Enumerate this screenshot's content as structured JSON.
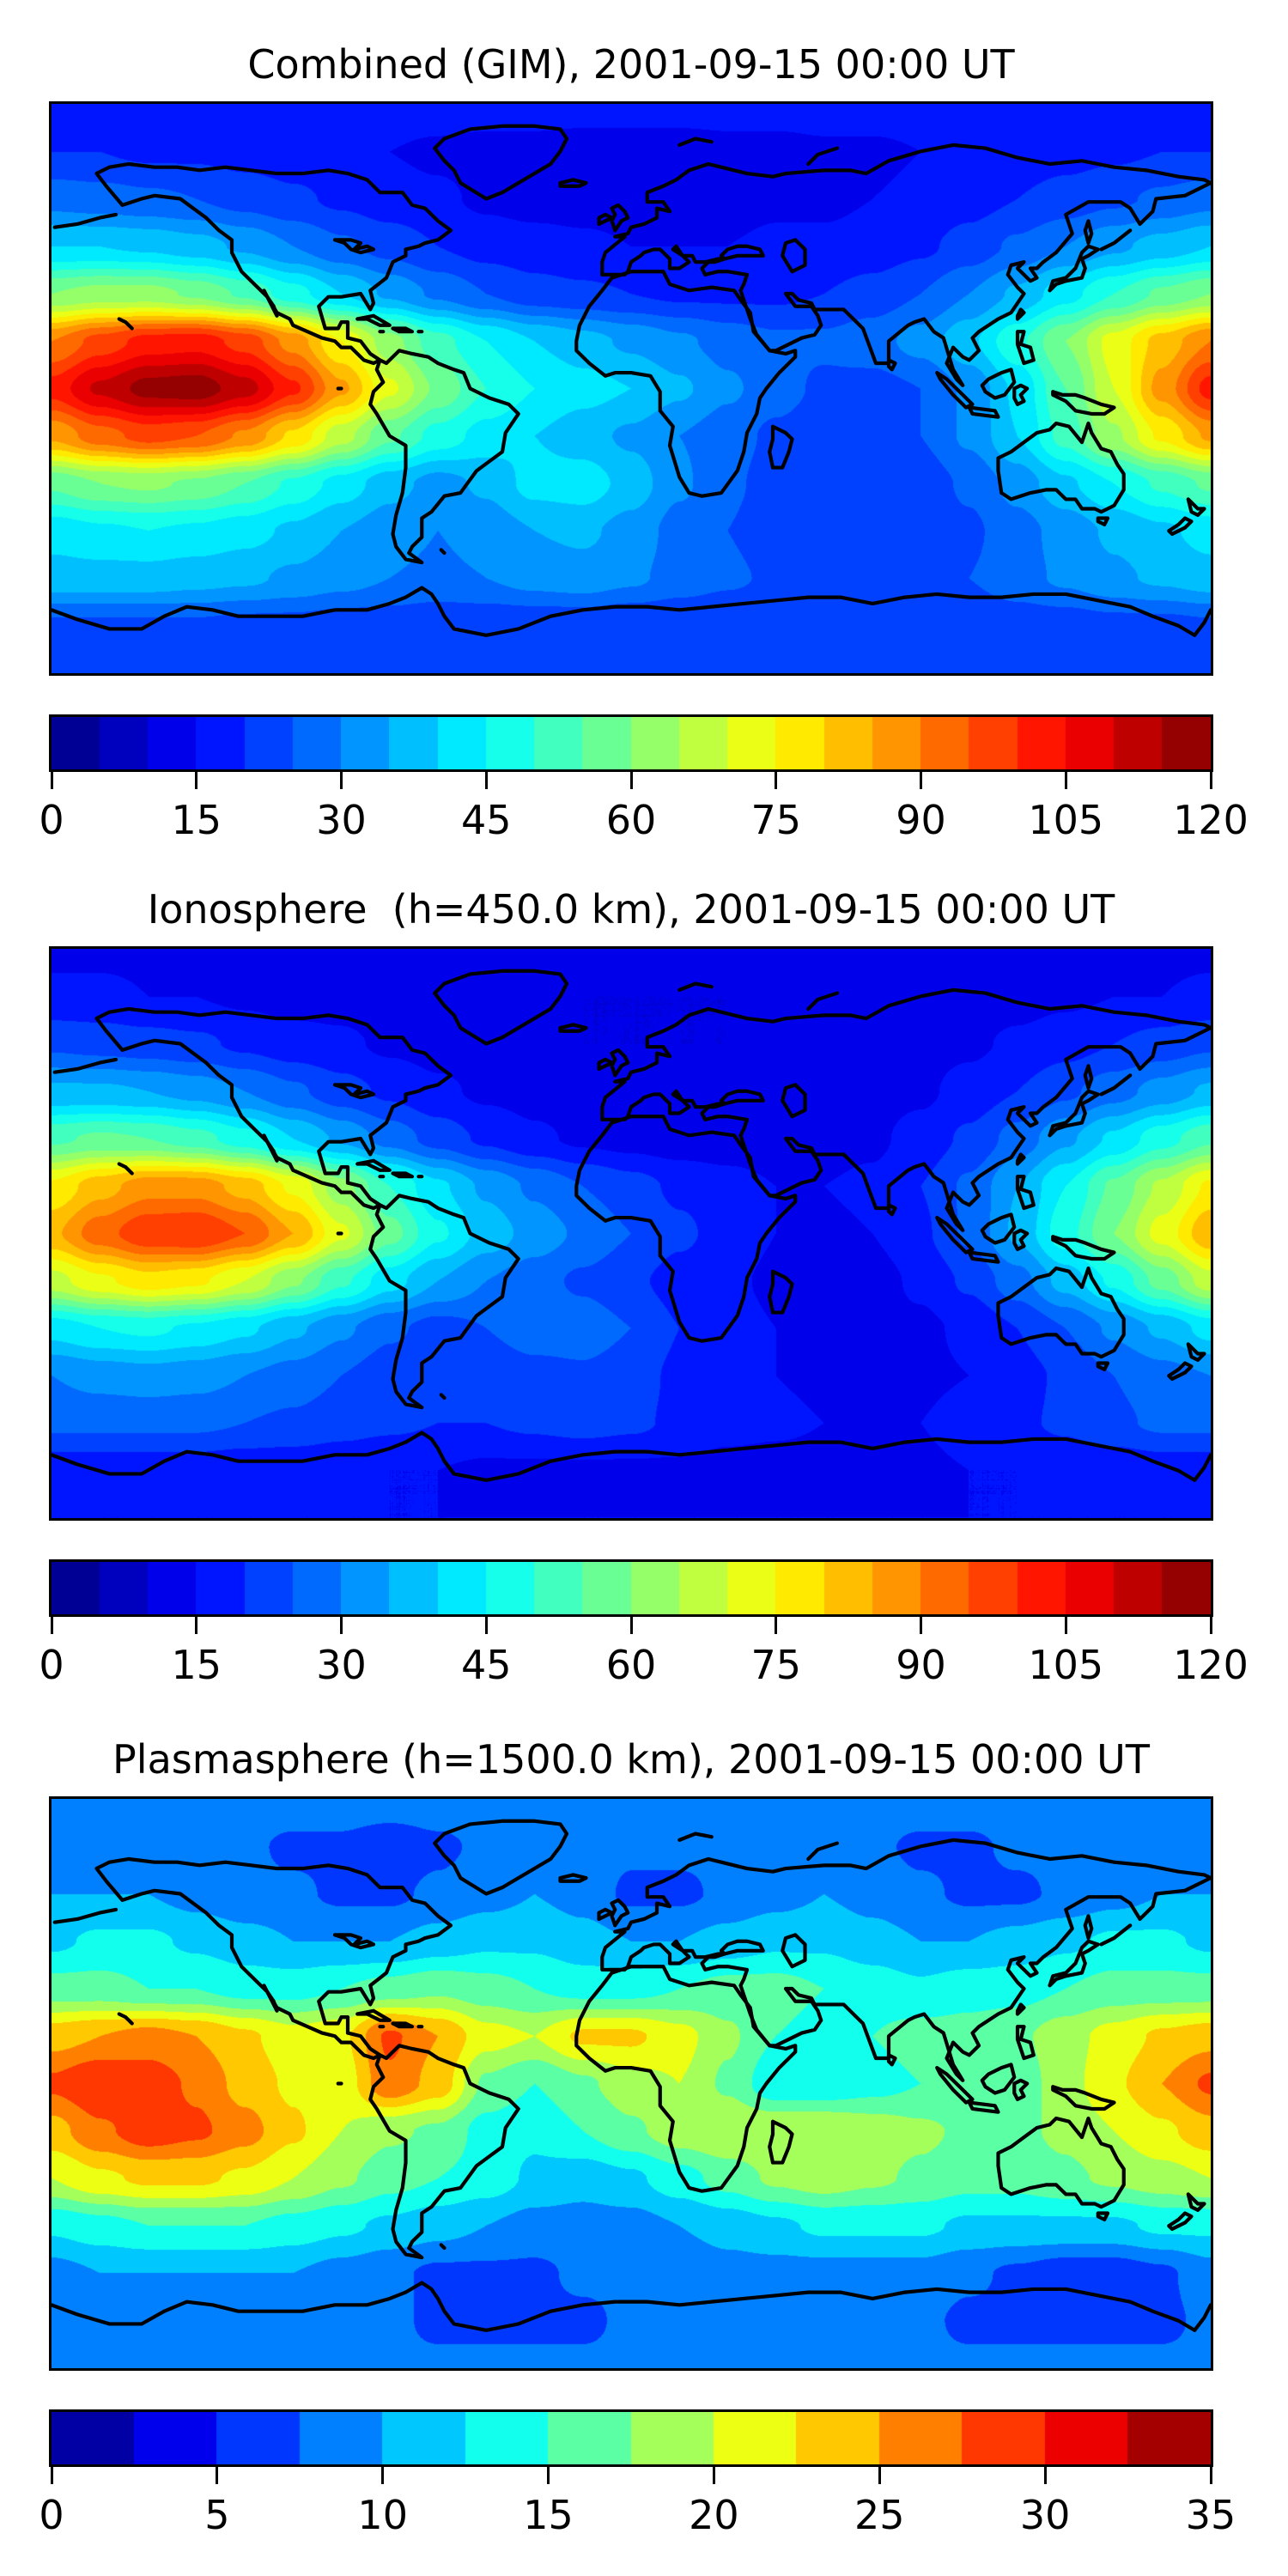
{
  "chart_data": [
    {
      "type": "heatmap",
      "title": "Combined (GIM), 2001-09-15 00:00 UT",
      "colormap": "jet",
      "projection": "equirectangular",
      "basemap": "world-coastlines",
      "lon_start": -180,
      "lon_step": 15,
      "lat_start": 90,
      "lat_step": -15,
      "vmin": 0,
      "vmax": 120,
      "level_step": 5,
      "colorbar_ticks": [
        0,
        15,
        30,
        45,
        60,
        75,
        90,
        105,
        120
      ],
      "values": [
        [
          18,
          18,
          18,
          18,
          18,
          18,
          18,
          18,
          18,
          18,
          18,
          18,
          18,
          18,
          18,
          18,
          18,
          18,
          18,
          18,
          18,
          18,
          18,
          18,
          18
        ],
        [
          20,
          20,
          19,
          19,
          18,
          17,
          16,
          15,
          14,
          13,
          13,
          12,
          12,
          12,
          13,
          13,
          14,
          14,
          15,
          16,
          17,
          18,
          19,
          20,
          20
        ],
        [
          28,
          27,
          26,
          25,
          23,
          21,
          19,
          17,
          16,
          14,
          13,
          13,
          13,
          13,
          13,
          14,
          14,
          15,
          16,
          18,
          20,
          22,
          24,
          26,
          28
        ],
        [
          40,
          40,
          39,
          37,
          34,
          30,
          26,
          23,
          20,
          18,
          17,
          16,
          15,
          15,
          15,
          16,
          16,
          17,
          19,
          22,
          26,
          30,
          34,
          37,
          40
        ],
        [
          60,
          62,
          62,
          59,
          54,
          47,
          40,
          34,
          29,
          25,
          22,
          21,
          20,
          19,
          19,
          19,
          20,
          22,
          25,
          30,
          36,
          43,
          50,
          56,
          60
        ],
        [
          90,
          97,
          102,
          103,
          98,
          88,
          75,
          62,
          52,
          45,
          40,
          37,
          34,
          31,
          28,
          26,
          26,
          28,
          32,
          39,
          49,
          60,
          72,
          82,
          90
        ],
        [
          102,
          111,
          117,
          118,
          112,
          101,
          86,
          71,
          59,
          50,
          45,
          42,
          40,
          36,
          31,
          27,
          24,
          23,
          25,
          31,
          41,
          55,
          70,
          87,
          102
        ],
        [
          86,
          93,
          97,
          95,
          89,
          79,
          67,
          56,
          48,
          43,
          40,
          37,
          34,
          30,
          27,
          24,
          22,
          22,
          25,
          31,
          40,
          52,
          64,
          76,
          86
        ],
        [
          56,
          60,
          61,
          59,
          55,
          49,
          43,
          37,
          33,
          36,
          42,
          43,
          38,
          31,
          26,
          23,
          21,
          20,
          22,
          26,
          32,
          39,
          45,
          51,
          56
        ],
        [
          42,
          44,
          45,
          44,
          42,
          39,
          35,
          32,
          30,
          32,
          35,
          36,
          33,
          28,
          25,
          22,
          21,
          20,
          21,
          24,
          28,
          32,
          36,
          39,
          42
        ],
        [
          38,
          38,
          38,
          37,
          36,
          34,
          32,
          30,
          29,
          30,
          32,
          33,
          31,
          28,
          26,
          24,
          23,
          22,
          23,
          25,
          28,
          31,
          34,
          36,
          38
        ],
        [
          24,
          24,
          24,
          24,
          23,
          23,
          22,
          22,
          21,
          21,
          21,
          21,
          20,
          20,
          20,
          20,
          20,
          20,
          20,
          21,
          22,
          22,
          23,
          23,
          24
        ],
        [
          22,
          22,
          22,
          22,
          22,
          22,
          22,
          22,
          22,
          22,
          22,
          22,
          22,
          22,
          22,
          22,
          22,
          22,
          22,
          22,
          22,
          22,
          22,
          22,
          22
        ]
      ]
    },
    {
      "type": "heatmap",
      "title": "Ionosphere  (h=450.0 km), 2001-09-15 00:00 UT",
      "colormap": "jet",
      "projection": "equirectangular",
      "basemap": "world-coastlines",
      "lon_start": -180,
      "lon_step": 15,
      "lat_start": 90,
      "lat_step": -15,
      "vmin": 0,
      "vmax": 120,
      "level_step": 5,
      "colorbar_ticks": [
        0,
        15,
        30,
        45,
        60,
        75,
        90,
        105,
        120
      ],
      "values": [
        [
          14,
          14,
          14,
          14,
          14,
          14,
          14,
          14,
          14,
          14,
          14,
          14,
          14,
          14,
          14,
          14,
          14,
          14,
          14,
          14,
          14,
          14,
          14,
          14,
          14
        ],
        [
          16,
          16,
          15,
          15,
          14,
          13,
          13,
          12,
          11,
          11,
          10,
          10,
          10,
          10,
          10,
          10,
          11,
          11,
          12,
          12,
          13,
          14,
          15,
          15,
          16
        ],
        [
          24,
          23,
          22,
          21,
          19,
          17,
          16,
          14,
          13,
          12,
          11,
          10,
          10,
          10,
          10,
          11,
          11,
          12,
          13,
          14,
          16,
          18,
          20,
          22,
          24
        ],
        [
          36,
          36,
          35,
          33,
          30,
          26,
          22,
          19,
          16,
          14,
          13,
          12,
          11,
          11,
          11,
          11,
          12,
          13,
          14,
          17,
          20,
          24,
          28,
          32,
          36
        ],
        [
          54,
          56,
          55,
          52,
          47,
          40,
          34,
          28,
          23,
          19,
          16,
          14,
          13,
          12,
          12,
          12,
          13,
          14,
          17,
          21,
          27,
          34,
          41,
          48,
          54
        ],
        [
          76,
          83,
          88,
          88,
          83,
          74,
          62,
          50,
          41,
          34,
          29,
          25,
          22,
          19,
          17,
          15,
          15,
          16,
          20,
          26,
          35,
          45,
          56,
          66,
          76
        ],
        [
          84,
          93,
          99,
          100,
          95,
          85,
          71,
          57,
          46,
          38,
          33,
          29,
          25,
          21,
          18,
          15,
          14,
          15,
          19,
          26,
          36,
          48,
          60,
          72,
          84
        ],
        [
          68,
          74,
          78,
          76,
          70,
          61,
          51,
          42,
          35,
          30,
          27,
          24,
          21,
          18,
          16,
          14,
          13,
          13,
          16,
          21,
          28,
          37,
          46,
          57,
          68
        ],
        [
          42,
          45,
          46,
          44,
          41,
          36,
          31,
          26,
          23,
          25,
          28,
          28,
          25,
          20,
          17,
          15,
          13,
          13,
          14,
          16,
          20,
          25,
          31,
          36,
          42
        ],
        [
          30,
          32,
          33,
          32,
          30,
          28,
          25,
          22,
          20,
          21,
          23,
          24,
          22,
          19,
          16,
          15,
          14,
          13,
          14,
          15,
          18,
          21,
          25,
          28,
          30
        ],
        [
          26,
          26,
          26,
          26,
          25,
          24,
          22,
          21,
          20,
          20,
          21,
          22,
          21,
          19,
          17,
          16,
          15,
          15,
          15,
          17,
          19,
          21,
          24,
          26,
          26
        ],
        [
          17,
          17,
          17,
          17,
          16,
          16,
          16,
          15,
          15,
          14,
          14,
          14,
          14,
          14,
          13,
          13,
          13,
          14,
          14,
          15,
          15,
          16,
          16,
          17,
          17
        ],
        [
          15,
          15,
          15,
          15,
          15,
          15,
          15,
          15,
          15,
          15,
          15,
          15,
          15,
          15,
          15,
          15,
          15,
          15,
          15,
          15,
          15,
          15,
          15,
          15,
          15
        ]
      ]
    },
    {
      "type": "heatmap",
      "title": "Plasmasphere (h=1500.0 km), 2001-09-15 00:00 UT",
      "colormap": "jet",
      "projection": "equirectangular",
      "basemap": "world-coastlines",
      "lon_start": -180,
      "lon_step": 15,
      "lat_start": 90,
      "lat_step": -15,
      "vmin": 0,
      "vmax": 35,
      "level_step": 2.5,
      "colorbar_ticks": [
        0,
        5,
        10,
        15,
        20,
        25,
        30,
        35
      ],
      "values": [
        [
          9,
          9,
          9,
          9,
          9,
          9,
          9,
          9,
          9,
          9,
          9,
          9,
          9,
          9,
          9,
          9,
          9,
          9,
          9,
          9,
          9,
          9,
          9,
          9,
          9
        ],
        [
          9,
          9,
          8,
          8,
          8,
          7,
          7,
          6,
          7,
          8,
          9,
          9,
          8,
          8,
          8,
          8,
          8,
          8,
          7,
          7,
          8,
          8,
          9,
          9,
          9
        ],
        [
          10,
          10,
          10,
          9,
          8,
          8,
          7,
          7,
          8,
          9,
          10,
          9,
          7,
          7,
          8,
          9,
          10,
          9,
          8,
          7,
          7,
          8,
          9,
          10,
          10
        ],
        [
          12,
          13,
          13,
          12,
          11,
          10,
          10,
          10,
          11,
          12,
          12,
          11,
          10,
          10,
          11,
          12,
          12,
          11,
          10,
          10,
          11,
          12,
          13,
          13,
          12
        ],
        [
          16,
          16,
          15,
          15,
          14,
          14,
          15,
          16,
          17,
          16,
          15,
          14,
          14,
          15,
          16,
          16,
          15,
          14,
          13,
          14,
          14,
          15,
          16,
          16,
          16
        ],
        [
          24,
          25,
          26,
          25,
          23,
          21,
          22,
          28,
          25,
          21,
          20,
          23,
          23,
          21,
          18,
          15,
          14,
          15,
          16,
          16,
          17,
          19,
          21,
          23,
          24
        ],
        [
          28,
          30,
          29,
          27,
          24,
          22,
          21,
          27,
          24,
          17,
          15,
          17,
          19,
          20,
          17,
          13,
          13,
          14,
          15,
          15,
          16,
          19,
          22,
          25,
          28
        ],
        [
          24,
          27,
          29,
          28,
          26,
          23,
          20,
          18,
          17,
          14,
          13,
          15,
          17,
          19,
          20,
          20,
          20,
          19,
          18,
          17,
          17,
          18,
          20,
          22,
          24
        ],
        [
          20,
          22,
          23,
          23,
          22,
          20,
          18,
          16,
          15,
          14,
          12,
          11,
          12,
          14,
          16,
          18,
          19,
          18,
          17,
          16,
          16,
          17,
          18,
          19,
          20
        ],
        [
          13,
          14,
          15,
          15,
          15,
          14,
          13,
          12,
          11,
          10,
          9,
          9,
          9,
          10,
          11,
          12,
          13,
          13,
          13,
          12,
          12,
          12,
          12,
          13,
          13
        ],
        [
          9,
          10,
          10,
          10,
          10,
          10,
          9,
          8,
          7,
          7,
          7,
          8,
          8,
          8,
          9,
          9,
          9,
          9,
          9,
          8,
          7,
          6,
          6,
          7,
          9
        ],
        [
          8,
          8,
          8,
          8,
          8,
          8,
          8,
          8,
          7,
          7,
          7,
          7,
          8,
          8,
          8,
          8,
          8,
          8,
          8,
          7,
          7,
          7,
          7,
          7,
          8
        ],
        [
          8,
          8,
          8,
          8,
          8,
          8,
          8,
          8,
          8,
          8,
          8,
          8,
          8,
          8,
          8,
          8,
          8,
          8,
          8,
          8,
          8,
          8,
          8,
          8,
          8
        ]
      ]
    }
  ]
}
